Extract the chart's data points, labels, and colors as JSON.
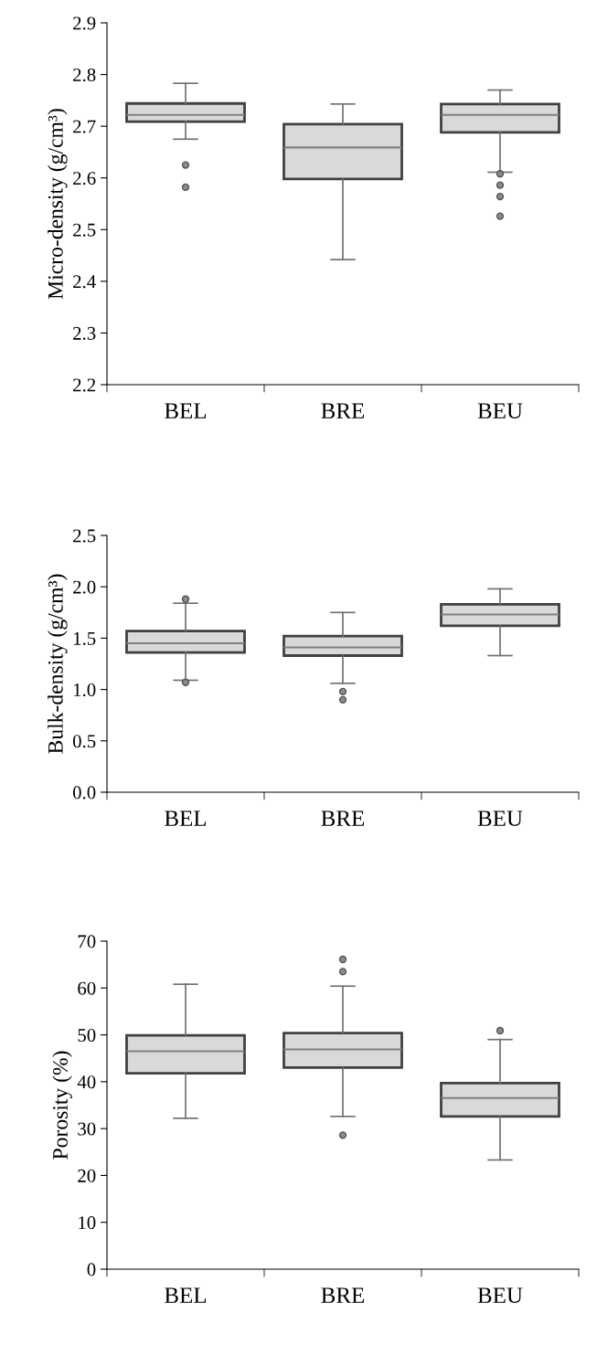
{
  "chart_data": [
    {
      "type": "box",
      "ylabel": "Micro-density (g/cm³)",
      "categories": [
        "BEL",
        "BRE",
        "BEU"
      ],
      "ylim": [
        2.2,
        2.9
      ],
      "yticks": [
        {
          "value": 2.2,
          "label": "2.2"
        },
        {
          "value": 2.3,
          "label": "2.3"
        },
        {
          "value": 2.4,
          "label": "2.4"
        },
        {
          "value": 2.5,
          "label": "2.5"
        },
        {
          "value": 2.6,
          "label": "2.6"
        },
        {
          "value": 2.7,
          "label": "2.7"
        },
        {
          "value": 2.8,
          "label": "2.8"
        },
        {
          "value": 2.9,
          "label": "2.9"
        }
      ],
      "color": "#d9d9d9",
      "grid": false,
      "boxes": [
        {
          "low": 2.675,
          "q1": 2.709,
          "median": 2.722,
          "q3": 2.744,
          "high": 2.783,
          "outliers": [
            2.625,
            2.582
          ]
        },
        {
          "low": 2.442,
          "q1": 2.598,
          "median": 2.659,
          "q3": 2.704,
          "high": 2.743
        },
        {
          "low": 2.611,
          "q1": 2.688,
          "median": 2.722,
          "q3": 2.743,
          "high": 2.77,
          "outliers": [
            2.608,
            2.586,
            2.564,
            2.526
          ]
        }
      ]
    },
    {
      "type": "box",
      "ylabel": "Bulk-density (g/cm³)",
      "categories": [
        "BEL",
        "BRE",
        "BEU"
      ],
      "ylim": [
        0,
        2.5
      ],
      "yticks": [
        {
          "value": 0,
          "label": "0.0"
        },
        {
          "value": 0.5,
          "label": "0.5"
        },
        {
          "value": 1,
          "label": "1.0"
        },
        {
          "value": 1.5,
          "label": "1.5"
        },
        {
          "value": 2,
          "label": "2.0"
        },
        {
          "value": 2.5,
          "label": "2.5"
        }
      ],
      "color": "#d9d9d9",
      "grid": false,
      "boxes": [
        {
          "low": 1.09,
          "q1": 1.36,
          "median": 1.45,
          "q3": 1.57,
          "high": 1.84,
          "outliers": [
            1.88,
            1.07
          ]
        },
        {
          "low": 1.06,
          "q1": 1.33,
          "median": 1.41,
          "q3": 1.52,
          "high": 1.75,
          "outliers": [
            0.98,
            0.9
          ]
        },
        {
          "low": 1.33,
          "q1": 1.62,
          "median": 1.73,
          "q3": 1.83,
          "high": 1.98
        }
      ]
    },
    {
      "type": "box",
      "ylabel": "Porosity (%)",
      "categories": [
        "BEL",
        "BRE",
        "BEU"
      ],
      "ylim": [
        0,
        70
      ],
      "yticks": [
        0,
        10,
        20,
        30,
        40,
        50,
        60,
        70
      ],
      "color": "#d9d9d9",
      "grid": false,
      "boxes": [
        {
          "low": 32.2,
          "q1": 41.8,
          "median": 46.5,
          "q3": 49.9,
          "high": 60.8
        },
        {
          "low": 32.6,
          "q1": 43.0,
          "median": 46.9,
          "q3": 50.4,
          "high": 60.4,
          "outliers": [
            66.1,
            63.5,
            28.6
          ]
        },
        {
          "low": 23.3,
          "q1": 32.6,
          "median": 36.5,
          "q3": 39.7,
          "high": 49.0,
          "outliers": [
            50.9
          ]
        }
      ]
    }
  ]
}
